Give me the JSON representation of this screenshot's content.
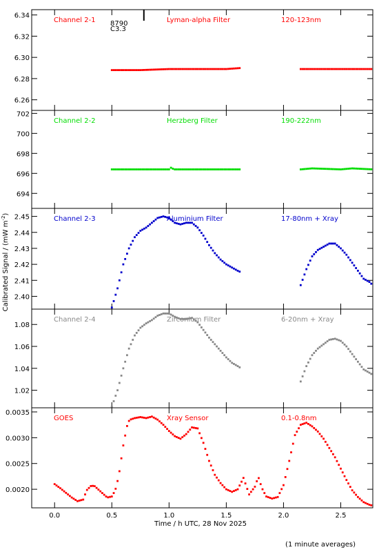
{
  "figure": {
    "ylabel": "Calibrated Signal / (mW m",
    "ylabel_sup": "-2",
    "ylabel_end": ")",
    "xlabel": "Time / h UTC, 28 Nov 2025",
    "footnote": "(1 minute averages)",
    "flare_id": "8790",
    "flare_class": "C3.3",
    "flare_time": 0.78,
    "xlim": [
      -0.2,
      2.78
    ],
    "xticks": [
      "0.0",
      "0.5",
      "1.0",
      "1.5",
      "2.0",
      "2.5"
    ]
  },
  "chart_data": [
    {
      "type": "scatter",
      "channel": "Channel 2-1",
      "filter": "Lyman-alpha Filter",
      "band": "120-123nm",
      "color": "#ff0000",
      "ylim": [
        6.25,
        6.345
      ],
      "yticks": [
        "6.26",
        "6.28",
        "6.30",
        "6.32",
        "6.34"
      ],
      "segments": [
        {
          "x": [
            0.5,
            0.75,
            1.0,
            1.25,
            1.5,
            1.63
          ],
          "y": [
            6.288,
            6.288,
            6.289,
            6.289,
            6.289,
            6.29
          ]
        },
        {
          "x": [
            2.15,
            2.35,
            2.55,
            2.78
          ],
          "y": [
            6.289,
            6.289,
            6.289,
            6.289
          ]
        }
      ]
    },
    {
      "type": "scatter",
      "channel": "Channel 2-2",
      "filter": "Herzberg Filter",
      "band": "190-222nm",
      "color": "#00dd00",
      "ylim": [
        692.5,
        702.3
      ],
      "yticks": [
        "694",
        "696",
        "698",
        "700",
        "702"
      ],
      "segments": [
        {
          "x": [
            0.5,
            0.75,
            1.0,
            1.02,
            1.04,
            1.25,
            1.5,
            1.63
          ],
          "y": [
            696.4,
            696.4,
            696.4,
            696.6,
            696.4,
            696.4,
            696.4,
            696.4
          ]
        },
        {
          "x": [
            2.15,
            2.25,
            2.5,
            2.6,
            2.78
          ],
          "y": [
            696.4,
            696.5,
            696.4,
            696.5,
            696.4
          ]
        }
      ]
    },
    {
      "type": "scatter",
      "channel": "Channel 2-3",
      "filter": "Aluminium Filter",
      "band": "17-80nm + Xray",
      "color": "#0000cc",
      "ylim": [
        2.392,
        2.455
      ],
      "yticks": [
        "2.40",
        "2.41",
        "2.42",
        "2.43",
        "2.44",
        "2.45"
      ],
      "segments": [
        {
          "x": [
            0.5,
            0.55,
            0.6,
            0.65,
            0.7,
            0.75,
            0.8,
            0.85,
            0.9,
            0.95,
            1.0,
            1.05,
            1.1,
            1.15,
            1.2,
            1.25,
            1.3,
            1.35,
            1.4,
            1.45,
            1.5,
            1.55,
            1.6,
            1.63
          ],
          "y": [
            2.393,
            2.405,
            2.42,
            2.43,
            2.437,
            2.441,
            2.443,
            2.446,
            2.449,
            2.45,
            2.449,
            2.446,
            2.445,
            2.446,
            2.446,
            2.443,
            2.438,
            2.432,
            2.427,
            2.423,
            2.42,
            2.418,
            2.416,
            2.415
          ]
        },
        {
          "x": [
            2.15,
            2.2,
            2.25,
            2.3,
            2.35,
            2.4,
            2.45,
            2.5,
            2.55,
            2.6,
            2.65,
            2.7,
            2.75,
            2.78
          ],
          "y": [
            2.407,
            2.417,
            2.425,
            2.429,
            2.431,
            2.433,
            2.433,
            2.43,
            2.426,
            2.421,
            2.416,
            2.411,
            2.409,
            2.407
          ]
        }
      ]
    },
    {
      "type": "scatter",
      "channel": "Channel 2-4",
      "filter": "Zirconium Filter",
      "band": "6-20nm + Xray",
      "color": "#888888",
      "ylim": [
        1.004,
        1.094
      ],
      "yticks": [
        "1.02",
        "1.04",
        "1.06",
        "1.08"
      ],
      "segments": [
        {
          "x": [
            0.5,
            0.55,
            0.6,
            0.65,
            0.7,
            0.75,
            0.8,
            0.85,
            0.9,
            0.95,
            1.0,
            1.05,
            1.1,
            1.15,
            1.2,
            1.25,
            1.3,
            1.35,
            1.4,
            1.45,
            1.5,
            1.55,
            1.6,
            1.63
          ],
          "y": [
            1.005,
            1.02,
            1.04,
            1.058,
            1.07,
            1.077,
            1.081,
            1.084,
            1.088,
            1.09,
            1.09,
            1.087,
            1.085,
            1.085,
            1.086,
            1.082,
            1.075,
            1.068,
            1.062,
            1.056,
            1.05,
            1.045,
            1.042,
            1.04
          ]
        },
        {
          "x": [
            2.15,
            2.2,
            2.25,
            2.3,
            2.35,
            2.4,
            2.45,
            2.5,
            2.55,
            2.6,
            2.65,
            2.7,
            2.75,
            2.78
          ],
          "y": [
            1.028,
            1.042,
            1.052,
            1.058,
            1.062,
            1.066,
            1.067,
            1.065,
            1.06,
            1.053,
            1.046,
            1.039,
            1.036,
            1.034
          ]
        }
      ]
    },
    {
      "type": "scatter",
      "channel": "GOES",
      "filter": "Xray Sensor",
      "band": "0.1-0.8nm",
      "color": "#ff0000",
      "ylim": [
        0.00164,
        0.00358
      ],
      "yticks": [
        "0.0020",
        "0.0025",
        "0.0030",
        "0.0035"
      ],
      "segments": [
        {
          "x": [
            0.0,
            0.05,
            0.1,
            0.15,
            0.2,
            0.25,
            0.28,
            0.32,
            0.35,
            0.38,
            0.42,
            0.46,
            0.5,
            0.53,
            0.56,
            0.58,
            0.6,
            0.62,
            0.64,
            0.66,
            0.7,
            0.75,
            0.8,
            0.85,
            0.9,
            0.95,
            1.0,
            1.05,
            1.1,
            1.15,
            1.2,
            1.25,
            1.3,
            1.35,
            1.4,
            1.45,
            1.5,
            1.55,
            1.6,
            1.65,
            1.7,
            1.75,
            1.78,
            1.8,
            1.82,
            1.85,
            1.9,
            1.95,
            2.0,
            2.05,
            2.1,
            2.15,
            2.2,
            2.25,
            2.3,
            2.35,
            2.4,
            2.45,
            2.5,
            2.55,
            2.6,
            2.65,
            2.7,
            2.75,
            2.78
          ],
          "y": [
            0.0021,
            0.00202,
            0.00193,
            0.00184,
            0.00177,
            0.0018,
            0.00198,
            0.00207,
            0.00206,
            0.002,
            0.00192,
            0.00184,
            0.00186,
            0.00198,
            0.00225,
            0.00255,
            0.00285,
            0.00308,
            0.0033,
            0.00335,
            0.00338,
            0.0034,
            0.00338,
            0.00341,
            0.00335,
            0.00325,
            0.00313,
            0.00303,
            0.00298,
            0.00307,
            0.0032,
            0.00318,
            0.0029,
            0.00255,
            0.00228,
            0.00212,
            0.002,
            0.00195,
            0.002,
            0.00222,
            0.0019,
            0.00205,
            0.00224,
            0.0021,
            0.00198,
            0.00186,
            0.00182,
            0.00185,
            0.00208,
            0.00255,
            0.00305,
            0.00325,
            0.00329,
            0.00322,
            0.00312,
            0.00298,
            0.0028,
            0.00262,
            0.0024,
            0.00218,
            0.00198,
            0.00185,
            0.00175,
            0.0017,
            0.00168
          ]
        }
      ]
    }
  ]
}
